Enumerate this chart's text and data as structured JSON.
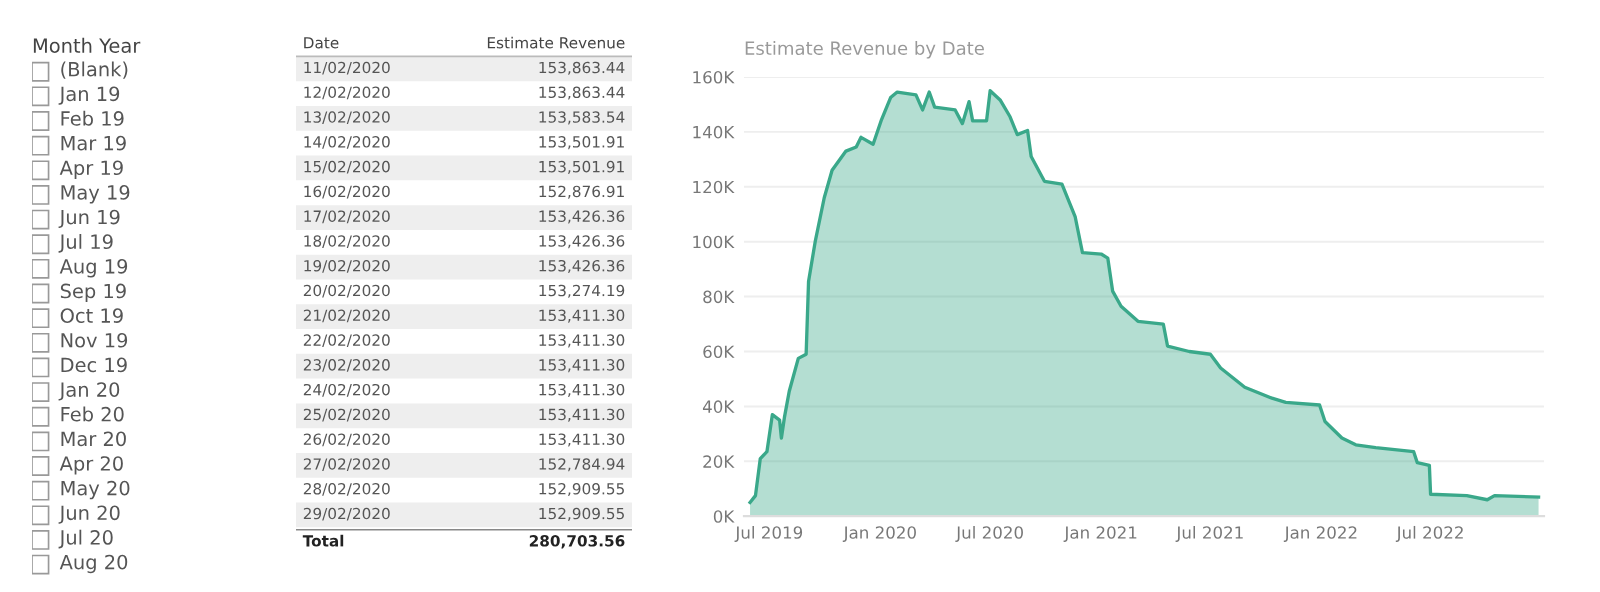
{
  "chart_data": [
    {
      "type": "other",
      "title": "Month Year",
      "annotations": [
        "(Blank)",
        "Jan 19",
        "Feb 19",
        "Mar 19",
        "Apr 19",
        "May 19",
        "Jun 19",
        "Jul 19",
        "Aug 19",
        "Sep 19",
        "Oct 19",
        "Nov 19",
        "Dec 19",
        "Jan 20",
        "Feb 20",
        "Mar 20",
        "Apr 20",
        "May 20",
        "Jun 20",
        "Jul 20",
        "Aug 20"
      ]
    },
    {
      "type": "other",
      "xlabel": "Date",
      "ylabel": "Estimate Revenue",
      "categories": [
        "11/02/2020",
        "12/02/2020",
        "13/02/2020",
        "14/02/2020",
        "15/02/2020",
        "16/02/2020",
        "17/02/2020",
        "18/02/2020",
        "19/02/2020",
        "20/02/2020",
        "21/02/2020",
        "22/02/2020",
        "23/02/2020",
        "24/02/2020",
        "25/02/2020",
        "26/02/2020",
        "27/02/2020",
        "28/02/2020",
        "29/02/2020"
      ],
      "values": [
        153863.44,
        153863.44,
        153583.54,
        153501.91,
        153501.91,
        152876.91,
        153426.36,
        153426.36,
        153426.36,
        153274.19,
        153411.3,
        153411.3,
        153411.3,
        153411.3,
        153411.3,
        153411.3,
        152784.94,
        152909.55,
        152909.55
      ],
      "value_labels": [
        "153,863.44",
        "153,863.44",
        "153,583.54",
        "153,501.91",
        "153,501.91",
        "152,876.91",
        "153,426.36",
        "153,426.36",
        "153,426.36",
        "153,274.19",
        "153,411.30",
        "153,411.30",
        "153,411.30",
        "153,411.30",
        "153,411.30",
        "153,411.30",
        "152,784.94",
        "152,909.55",
        "152,909.55"
      ],
      "annotations": [
        "Total",
        "280,703.56"
      ]
    },
    {
      "type": "area",
      "title": "Estimate Revenue by Date",
      "color": "#3aa88a",
      "grid": "y",
      "x": [
        "2019-05-30",
        "2019-06-08",
        "2019-06-16",
        "2019-06-27",
        "2019-07-06",
        "2019-07-18",
        "2019-07-21",
        "2019-07-26",
        "2019-08-03",
        "2019-08-18",
        "2019-08-31",
        "2019-09-04",
        "2019-09-15",
        "2019-09-30",
        "2019-10-13",
        "2019-11-05",
        "2019-11-22",
        "2019-11-30",
        "2019-12-20",
        "2020-01-03",
        "2020-01-18",
        "2020-01-29",
        "2020-02-29",
        "2020-03-11",
        "2020-03-22",
        "2020-03-31",
        "2020-05-04",
        "2020-05-16",
        "2020-05-27",
        "2020-06-02",
        "2020-06-25",
        "2020-07-01",
        "2020-07-18",
        "2020-08-03",
        "2020-08-15",
        "2020-09-01",
        "2020-09-07",
        "2020-09-29",
        "2020-10-28",
        "2020-11-19",
        "2020-12-01",
        "2021-01-01",
        "2021-01-12",
        "2021-01-20",
        "2021-02-03",
        "2021-03-03",
        "2021-04-14",
        "2021-04-21",
        "2021-05-27",
        "2021-07-01",
        "2021-07-18",
        "2021-08-27",
        "2021-10-11",
        "2021-11-03",
        "2021-12-29",
        "2022-01-07",
        "2022-02-04",
        "2022-02-27",
        "2022-04-01",
        "2022-06-03",
        "2022-06-09",
        "2022-06-29",
        "2022-07-01",
        "2022-08-30",
        "2022-10-03",
        "2022-10-15",
        "2022-12-27"
      ],
      "values": [
        5000,
        7500,
        21000,
        23500,
        37000,
        35000,
        28500,
        36000,
        45500,
        57500,
        59000,
        85500,
        100000,
        116000,
        126000,
        133000,
        134500,
        138000,
        135500,
        144500,
        152500,
        154500,
        153500,
        148000,
        154500,
        149000,
        148000,
        143000,
        151000,
        144000,
        144000,
        155000,
        151500,
        145500,
        139000,
        140500,
        131000,
        122000,
        121000,
        109000,
        96000,
        95500,
        94000,
        82000,
        76500,
        71000,
        70000,
        62000,
        60000,
        59000,
        54000,
        47000,
        43000,
        41500,
        40500,
        34500,
        28500,
        26000,
        25000,
        23500,
        19500,
        18500,
        8000,
        7500,
        6000,
        7500,
        7000
      ],
      "xlim": [
        "2019-05-20",
        "2023-01-05"
      ],
      "xticks": [
        {
          "value": "2019-07-01",
          "label": "Jul 2019"
        },
        {
          "value": "2020-01-01",
          "label": "Jan 2020"
        },
        {
          "value": "2020-07-01",
          "label": "Jul 2020"
        },
        {
          "value": "2021-01-01",
          "label": "Jan 2021"
        },
        {
          "value": "2021-07-01",
          "label": "Jul 2021"
        },
        {
          "value": "2022-01-01",
          "label": "Jan 2022"
        },
        {
          "value": "2022-07-01",
          "label": "Jul 2022"
        }
      ],
      "ylim": [
        0,
        160000
      ],
      "yticks": [
        {
          "value": 0,
          "label": "0K"
        },
        {
          "value": 20000,
          "label": "20K"
        },
        {
          "value": 40000,
          "label": "40K"
        },
        {
          "value": 60000,
          "label": "60K"
        },
        {
          "value": 80000,
          "label": "80K"
        },
        {
          "value": 100000,
          "label": "100K"
        },
        {
          "value": 120000,
          "label": "120K"
        },
        {
          "value": 140000,
          "label": "140K"
        },
        {
          "value": 160000,
          "label": "160K"
        }
      ]
    }
  ]
}
